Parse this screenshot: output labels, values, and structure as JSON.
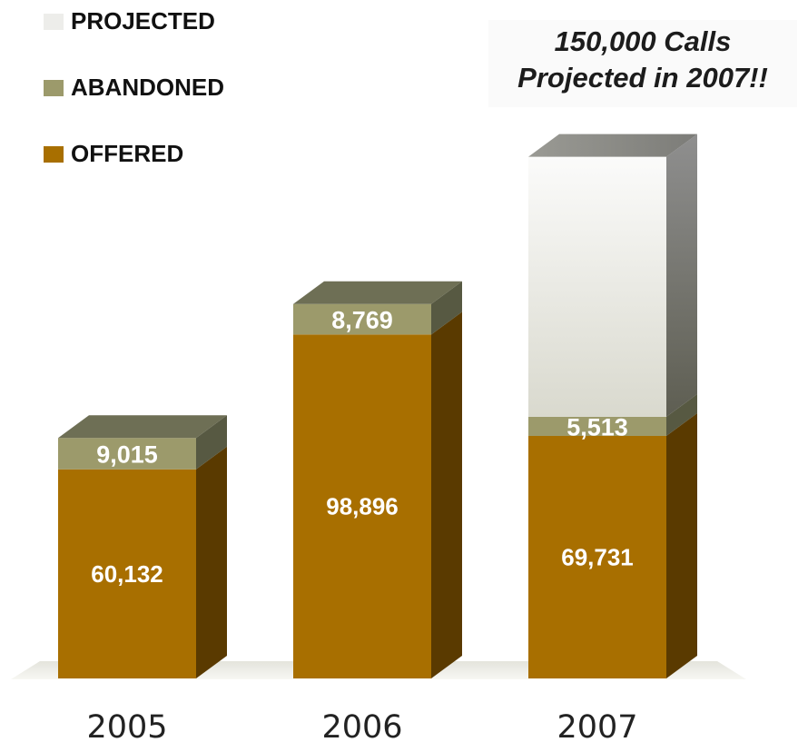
{
  "legend": {
    "items": [
      {
        "label": "PROJECTED",
        "color": "#ededea"
      },
      {
        "label": "ABANDONED",
        "color": "#9c9a6b"
      },
      {
        "label": "OFFERED",
        "color": "#a86f00"
      }
    ]
  },
  "callout": {
    "line1": "150,000 Calls",
    "line2": "Projected in 2007!!"
  },
  "chart_data": {
    "type": "bar",
    "stacked": true,
    "three_d": true,
    "categories": [
      "2005",
      "2006",
      "2007"
    ],
    "series": [
      {
        "name": "OFFERED",
        "values": [
          60132,
          98896,
          69731
        ],
        "labels": [
          "60,132",
          "98,896",
          "69,731"
        ],
        "color": "#a86f00"
      },
      {
        "name": "ABANDONED",
        "values": [
          9015,
          8769,
          5513
        ],
        "labels": [
          "9,015",
          "8,769",
          "5,513"
        ],
        "color": "#9c9a6b"
      },
      {
        "name": "PROJECTED",
        "values": [
          0,
          0,
          74756
        ],
        "labels": [
          "",
          "",
          ""
        ],
        "color": "#ededea"
      }
    ],
    "total_projected_2007": 150000,
    "legend_position": "top-left",
    "grid": false
  }
}
